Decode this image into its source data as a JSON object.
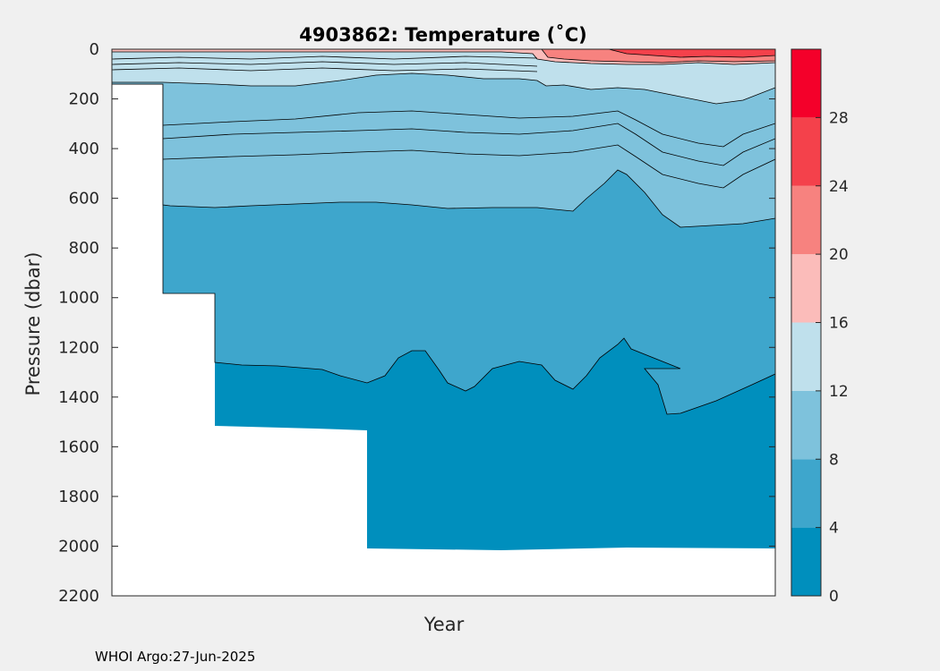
{
  "chart_data": {
    "type": "heatmap",
    "title": "4903862:  Temperature (˚C)",
    "xlabel": "Year",
    "ylabel": "Pressure (dbar)",
    "y_ticks": [
      "0",
      "200",
      "400",
      "600",
      "800",
      "1000",
      "1200",
      "1400",
      "1600",
      "1800",
      "2000",
      "2200"
    ],
    "y_tick_values": [
      0,
      200,
      400,
      600,
      800,
      1000,
      1200,
      1400,
      1600,
      1800,
      2000,
      2200
    ],
    "ylim": [
      0,
      2200
    ],
    "y_reversed": true,
    "colorbar": {
      "ticks": [
        "0",
        "4",
        "8",
        "12",
        "16",
        "20",
        "24",
        "28"
      ],
      "tick_values": [
        0,
        4,
        8,
        12,
        16,
        20,
        24,
        28
      ],
      "range": [
        0,
        32
      ],
      "levels": [
        {
          "min": 0,
          "max": 4,
          "color": "#008fbd"
        },
        {
          "min": 4,
          "max": 8,
          "color": "#3ea6cc"
        },
        {
          "min": 8,
          "max": 12,
          "color": "#7ec2dc"
        },
        {
          "min": 12,
          "max": 16,
          "color": "#bfe0ec"
        },
        {
          "min": 16,
          "max": 20,
          "color": "#fbbcba"
        },
        {
          "min": 20,
          "max": 24,
          "color": "#f7827f"
        },
        {
          "min": 24,
          "max": 28,
          "color": "#f4414b"
        },
        {
          "min": 28,
          "max": 32,
          "color": "#f4002a"
        }
      ]
    },
    "approx_isotherm_depths_dbar": [
      {
        "temperature": 12,
        "depth": 120
      },
      {
        "temperature": 8,
        "depth": 400
      },
      {
        "temperature": 4,
        "depth": 1300
      }
    ],
    "max_profile_depth_dbar": 2010,
    "grid": false
  },
  "footer": "WHOI Argo:27-Jun-2025"
}
